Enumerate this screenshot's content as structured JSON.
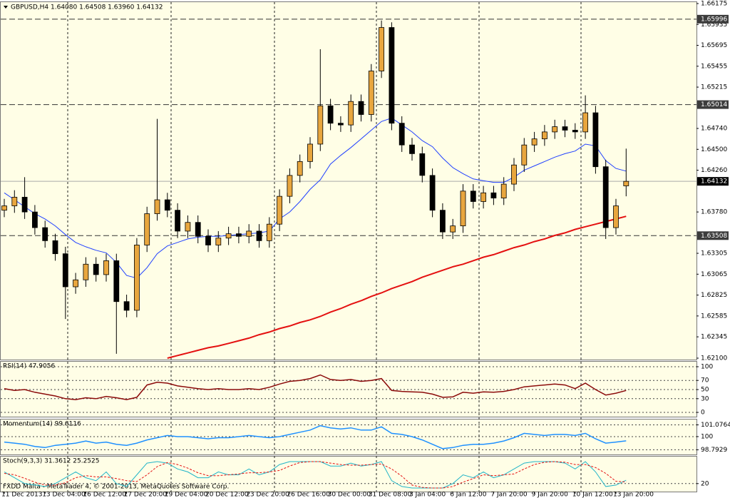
{
  "chart_data": [
    {
      "type": "candlestick",
      "title": "GBPUSD,H4  1.64080 1.64508 1.63960 1.64132",
      "x": [
        "11 Dec 2013",
        null,
        null,
        null,
        "13 Dec 04:00",
        null,
        null,
        null,
        "16 Dec 12:00",
        null,
        null,
        null,
        "17 Dec 20:00",
        null,
        null,
        null,
        "19 Dec 04:00",
        null,
        null,
        null,
        "20 Dec 12:00",
        null,
        null,
        null,
        "23 Dec 20:00",
        null,
        null,
        null,
        "26 Dec 16:00",
        null,
        null,
        null,
        "30 Dec 00:00",
        null,
        null,
        null,
        "31 Dec 08:00",
        null,
        null,
        null,
        "3 Jan 04:00",
        null,
        null,
        null,
        "6 Jan 12:00",
        null,
        null,
        null,
        "7 Jan 20:00",
        null,
        null,
        null,
        "9 Jan 20:00",
        null,
        null,
        null,
        "10 Jan 12:00",
        null,
        null,
        null,
        "13 Jan 20:00",
        null
      ],
      "open": [
        1.638,
        1.6385,
        1.6395,
        1.6378,
        1.636,
        1.6345,
        1.633,
        1.6292,
        1.63,
        1.6318,
        1.6306,
        1.6322,
        1.6275,
        1.6265,
        1.634,
        1.6376,
        1.6392,
        1.638,
        1.6356,
        1.6366,
        1.635,
        1.634,
        1.6348,
        1.6353,
        1.635,
        1.6356,
        1.6345,
        1.6364,
        1.6396,
        1.642,
        1.6436,
        1.6456,
        1.65,
        1.648,
        1.6478,
        1.6505,
        1.649,
        1.654,
        1.659,
        1.648,
        1.6455,
        1.6445,
        1.642,
        1.638,
        1.6355,
        1.6362,
        1.6402,
        1.639,
        1.64,
        1.6394,
        1.641,
        1.6432,
        1.6455,
        1.6462,
        1.647,
        1.6476,
        1.6472,
        1.647,
        1.6492,
        1.643,
        1.636,
        1.6408
      ],
      "high": [
        1.6393,
        1.6403,
        1.6418,
        1.6386,
        1.6368,
        1.6353,
        1.6338,
        1.6308,
        1.6326,
        1.6326,
        1.633,
        1.633,
        1.6283,
        1.6348,
        1.6384,
        1.6485,
        1.64,
        1.6388,
        1.6374,
        1.6374,
        1.6358,
        1.6356,
        1.6361,
        1.6361,
        1.6364,
        1.6364,
        1.6372,
        1.6404,
        1.6428,
        1.6444,
        1.6464,
        1.6565,
        1.6508,
        1.6488,
        1.6513,
        1.6513,
        1.6548,
        1.6598,
        1.6596,
        1.6488,
        1.6463,
        1.6453,
        1.6428,
        1.6388,
        1.637,
        1.641,
        1.641,
        1.6408,
        1.6408,
        1.6418,
        1.644,
        1.6463,
        1.647,
        1.6478,
        1.6484,
        1.6484,
        1.648,
        1.6512,
        1.65,
        1.6438,
        1.6393,
        1.64508
      ],
      "low": [
        1.6372,
        1.6377,
        1.637,
        1.6352,
        1.6337,
        1.6322,
        1.6255,
        1.6284,
        1.6292,
        1.6298,
        1.6298,
        1.6215,
        1.6257,
        1.6257,
        1.6332,
        1.6368,
        1.6372,
        1.6348,
        1.6348,
        1.6342,
        1.6332,
        1.6332,
        1.634,
        1.6342,
        1.6342,
        1.6337,
        1.6337,
        1.6356,
        1.6388,
        1.6412,
        1.6428,
        1.6448,
        1.6472,
        1.647,
        1.647,
        1.6482,
        1.6482,
        1.6532,
        1.6472,
        1.6447,
        1.6437,
        1.6412,
        1.6372,
        1.6347,
        1.6347,
        1.6354,
        1.6382,
        1.6382,
        1.6386,
        1.6386,
        1.6402,
        1.6424,
        1.6447,
        1.6454,
        1.6462,
        1.6464,
        1.6462,
        1.6462,
        1.6422,
        1.6347,
        1.6352,
        1.6396
      ],
      "close": [
        1.6385,
        1.6395,
        1.6378,
        1.636,
        1.6345,
        1.633,
        1.6292,
        1.63,
        1.6318,
        1.6306,
        1.6322,
        1.6275,
        1.6265,
        1.634,
        1.6376,
        1.6392,
        1.638,
        1.6356,
        1.6366,
        1.635,
        1.634,
        1.6348,
        1.6353,
        1.635,
        1.6356,
        1.6345,
        1.6364,
        1.6396,
        1.642,
        1.6436,
        1.6456,
        1.65,
        1.648,
        1.6478,
        1.6505,
        1.649,
        1.654,
        1.659,
        1.648,
        1.6455,
        1.6445,
        1.642,
        1.638,
        1.6355,
        1.6362,
        1.6402,
        1.639,
        1.64,
        1.6394,
        1.641,
        1.6432,
        1.6455,
        1.6462,
        1.647,
        1.6476,
        1.6472,
        1.647,
        1.6492,
        1.643,
        1.636,
        1.6385,
        1.64132
      ],
      "up_color": "#e8a63e",
      "down_color": "#000000",
      "overlays": [
        {
          "color": "#2040ff",
          "values": [
            1.64,
            1.6392,
            1.6384,
            1.6376,
            1.637,
            1.6362,
            1.6352,
            1.6343,
            1.6338,
            1.6334,
            1.6331,
            1.632,
            1.6305,
            1.6302,
            1.6314,
            1.633,
            1.6339,
            1.6343,
            1.6347,
            1.6349,
            1.635,
            1.635,
            1.6351,
            1.6352,
            1.6353,
            1.6354,
            1.6356,
            1.637,
            1.6378,
            1.639,
            1.6404,
            1.6415,
            1.6433,
            1.6443,
            1.6452,
            1.6462,
            1.6472,
            1.6482,
            1.6486,
            1.6478,
            1.647,
            1.646,
            1.6453,
            1.644,
            1.6429,
            1.6422,
            1.6416,
            1.6414,
            1.6412,
            1.6412,
            1.6418,
            1.6426,
            1.6431,
            1.6436,
            1.6441,
            1.6445,
            1.6448,
            1.6456,
            1.6454,
            1.6437,
            1.6428,
            1.6425
          ]
        },
        {
          "color": "#e41010",
          "values": [
            null,
            null,
            null,
            null,
            null,
            null,
            null,
            null,
            null,
            null,
            null,
            null,
            null,
            null,
            null,
            null,
            1.621,
            1.6213,
            1.6216,
            1.6219,
            1.6222,
            1.6224,
            1.6227,
            1.623,
            1.6233,
            1.6237,
            1.624,
            1.6244,
            1.6247,
            1.6251,
            1.6254,
            1.6258,
            1.6263,
            1.6267,
            1.6272,
            1.6276,
            1.6281,
            1.6285,
            1.629,
            1.6294,
            1.6298,
            1.6303,
            1.6307,
            1.6311,
            1.6315,
            1.6318,
            1.6322,
            1.6326,
            1.6329,
            1.6333,
            1.6337,
            1.634,
            1.6344,
            1.6347,
            1.6351,
            1.6354,
            1.6358,
            1.6361,
            1.6364,
            1.6367,
            1.637,
            1.6373
          ]
        }
      ],
      "levels": [
        1.65996,
        1.65014,
        1.63508
      ],
      "last_price": 1.64132,
      "ylim": [
        1.621,
        1.66175
      ],
      "yticks": [
        1.66175,
        1.65935,
        1.65695,
        1.65455,
        1.65215,
        {
          "value": 1.6474,
          "label": "1.64740"
        },
        {
          "value": 1.645,
          "label": "1.64500"
        },
        {
          "value": 1.6426,
          "label": "1.64260"
        },
        {
          "value": 1.6378,
          "label": "1.63780"
        },
        1.63305,
        1.63065,
        1.62825,
        1.62585,
        1.62345,
        {
          "value": 1.621,
          "label": "1.62100"
        }
      ]
    },
    {
      "type": "line",
      "title": "RSI(14) 47.9056",
      "color": "#8b0a0a",
      "values": [
        52,
        48,
        50,
        44,
        40,
        36,
        30,
        28,
        32,
        30,
        35,
        32,
        28,
        33,
        60,
        66,
        64,
        58,
        55,
        52,
        50,
        52,
        50,
        50,
        52,
        50,
        55,
        62,
        68,
        70,
        74,
        82,
        72,
        70,
        72,
        68,
        70,
        74,
        48,
        46,
        45,
        44,
        40,
        33,
        34,
        44,
        42,
        45,
        44,
        46,
        50,
        56,
        58,
        60,
        62,
        60,
        52,
        64,
        50,
        38,
        42,
        47.9056
      ],
      "ylim": [
        0,
        100
      ],
      "yticks": [
        100,
        70,
        50,
        30,
        0
      ],
      "grid": true
    },
    {
      "type": "line",
      "title": "Momentum(14) 99.6116",
      "color": "#1e90ff",
      "values": [
        99.5,
        99.4,
        99.3,
        99.1,
        99,
        99.2,
        99.3,
        99.4,
        99.6,
        99.4,
        99.5,
        99.3,
        99.2,
        99.4,
        99.7,
        99.9,
        100.1,
        100,
        100,
        99.9,
        99.8,
        99.9,
        99.9,
        100,
        100.1,
        100,
        99.9,
        100,
        100.2,
        100.4,
        100.6,
        101,
        100.8,
        100.7,
        100.8,
        100.6,
        100.6,
        100.9,
        100.3,
        100.2,
        100,
        99.7,
        99.3,
        98.9,
        99,
        99.2,
        99.3,
        99.3,
        99.4,
        99.6,
        99.9,
        100.3,
        100.2,
        100.1,
        100.2,
        100.2,
        100.1,
        100.3,
        99.8,
        99.4,
        99.5,
        99.6116
      ],
      "ylim": [
        98.56,
        101.37
      ],
      "yticks": [
        101.0764,
        100,
        98.7929
      ],
      "grid": true
    },
    {
      "type": "multiline",
      "title": "Stoch(9,3,3) 31.3612 25.2525",
      "series": [
        {
          "color": "#20b4c8",
          "dashed": false,
          "values": [
            60,
            40,
            20,
            15,
            10,
            20,
            40,
            60,
            40,
            30,
            60,
            20,
            10,
            50,
            90,
            95,
            90,
            70,
            60,
            40,
            40,
            60,
            50,
            50,
            70,
            50,
            60,
            85,
            95,
            95,
            95,
            95,
            80,
            80,
            90,
            80,
            85,
            95,
            30,
            10,
            5,
            5,
            5,
            5,
            20,
            50,
            40,
            60,
            40,
            50,
            70,
            90,
            95,
            95,
            95,
            90,
            70,
            95,
            60,
            10,
            15,
            31.3612
          ]
        },
        {
          "color": "#e41010",
          "dashed": true,
          "values": [
            55,
            50,
            38,
            25,
            15,
            15,
            23,
            40,
            47,
            43,
            43,
            37,
            30,
            27,
            50,
            78,
            92,
            85,
            73,
            57,
            47,
            47,
            50,
            53,
            57,
            57,
            60,
            65,
            80,
            92,
            95,
            95,
            90,
            85,
            83,
            83,
            85,
            87,
            70,
            45,
            15,
            7,
            5,
            5,
            10,
            25,
            37,
            50,
            47,
            50,
            53,
            70,
            85,
            93,
            95,
            93,
            85,
            85,
            75,
            55,
            28,
            25.2525
          ]
        }
      ],
      "ylim": [
        0,
        100
      ],
      "yticks": [
        20
      ],
      "grid": true
    }
  ],
  "footer": "FXDD Malta - MetaTrader 4, © 2001-2013, MetaQuotes Software Corp."
}
